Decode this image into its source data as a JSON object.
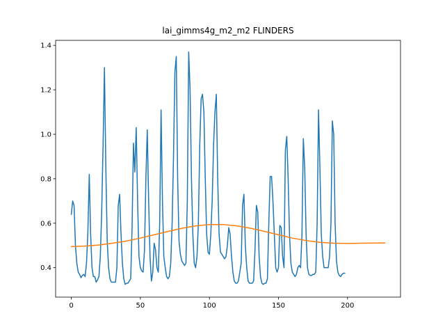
{
  "chart_data": {
    "type": "line",
    "title": "lai_gimms4g_m2_m2 FLINDERS",
    "xlabel": "",
    "ylabel": "",
    "xlim": [
      -11.35,
      238.35
    ],
    "ylim": [
      0.2675,
      1.4225
    ],
    "x_ticks": [
      0,
      50,
      100,
      150,
      200
    ],
    "y_ticks": [
      0.4,
      0.6,
      0.8,
      1.0,
      1.2,
      1.4
    ],
    "y_tick_labels": [
      "0.4",
      "0.6",
      "0.8",
      "1.0",
      "1.2",
      "1.4"
    ],
    "grid": false,
    "legend": "none",
    "series": [
      {
        "color": "#1f77b4",
        "points": [
          [
            0,
            0.64
          ],
          [
            1,
            0.7
          ],
          [
            2,
            0.68
          ],
          [
            3,
            0.5
          ],
          [
            4,
            0.42
          ],
          [
            5,
            0.38
          ],
          [
            6,
            0.37
          ],
          [
            7,
            0.355
          ],
          [
            8,
            0.365
          ],
          [
            9,
            0.37
          ],
          [
            10,
            0.36
          ],
          [
            11,
            0.42
          ],
          [
            12,
            0.56
          ],
          [
            13,
            0.82
          ],
          [
            14,
            0.55
          ],
          [
            15,
            0.4
          ],
          [
            16,
            0.36
          ],
          [
            17,
            0.36
          ],
          [
            18,
            0.335
          ],
          [
            19,
            0.345
          ],
          [
            20,
            0.36
          ],
          [
            21,
            0.45
          ],
          [
            22,
            0.65
          ],
          [
            23,
            0.95
          ],
          [
            24,
            1.3
          ],
          [
            25,
            0.85
          ],
          [
            26,
            0.52
          ],
          [
            27,
            0.4
          ],
          [
            28,
            0.35
          ],
          [
            29,
            0.335
          ],
          [
            30,
            0.335
          ],
          [
            31,
            0.335
          ],
          [
            32,
            0.335
          ],
          [
            33,
            0.4
          ],
          [
            34,
            0.68
          ],
          [
            35,
            0.73
          ],
          [
            36,
            0.55
          ],
          [
            37,
            0.42
          ],
          [
            38,
            0.35
          ],
          [
            39,
            0.325
          ],
          [
            40,
            0.33
          ],
          [
            41,
            0.33
          ],
          [
            42,
            0.34
          ],
          [
            43,
            0.35
          ],
          [
            44,
            0.58
          ],
          [
            45,
            0.96
          ],
          [
            46,
            0.83
          ],
          [
            47,
            1.03
          ],
          [
            48,
            0.7
          ],
          [
            49,
            0.45
          ],
          [
            50,
            0.4
          ],
          [
            51,
            0.385
          ],
          [
            52,
            0.38
          ],
          [
            53,
            0.48
          ],
          [
            54,
            0.8
          ],
          [
            55,
            1.02
          ],
          [
            56,
            0.7
          ],
          [
            57,
            0.45
          ],
          [
            58,
            0.34
          ],
          [
            59,
            0.38
          ],
          [
            60,
            0.51
          ],
          [
            61,
            0.48
          ],
          [
            62,
            0.4
          ],
          [
            63,
            0.38
          ],
          [
            64,
            0.6
          ],
          [
            65,
            1.11
          ],
          [
            66,
            0.7
          ],
          [
            67,
            0.45
          ],
          [
            68,
            0.4
          ],
          [
            69,
            0.36
          ],
          [
            70,
            0.35
          ],
          [
            71,
            0.36
          ],
          [
            72,
            0.42
          ],
          [
            73,
            0.6
          ],
          [
            74,
            0.9
          ],
          [
            75,
            1.28
          ],
          [
            76,
            1.35
          ],
          [
            77,
            0.8
          ],
          [
            78,
            0.52
          ],
          [
            79,
            0.46
          ],
          [
            80,
            0.43
          ],
          [
            81,
            0.42
          ],
          [
            82,
            0.41
          ],
          [
            83,
            0.42
          ],
          [
            84,
            0.7
          ],
          [
            85,
            1.37
          ],
          [
            86,
            1.2
          ],
          [
            87,
            0.8
          ],
          [
            88,
            0.55
          ],
          [
            89,
            0.42
          ],
          [
            90,
            0.4
          ],
          [
            91,
            0.45
          ],
          [
            92,
            0.6
          ],
          [
            93,
            0.95
          ],
          [
            94,
            1.16
          ],
          [
            95,
            1.18
          ],
          [
            96,
            1.1
          ],
          [
            97,
            0.8
          ],
          [
            98,
            0.55
          ],
          [
            99,
            0.47
          ],
          [
            100,
            0.46
          ],
          [
            101,
            0.55
          ],
          [
            102,
            0.7
          ],
          [
            103,
            0.95
          ],
          [
            104,
            1.1
          ],
          [
            105,
            1.18
          ],
          [
            106,
            0.8
          ],
          [
            107,
            0.55
          ],
          [
            108,
            0.47
          ],
          [
            109,
            0.46
          ],
          [
            110,
            0.45
          ],
          [
            111,
            0.44
          ],
          [
            112,
            0.45
          ],
          [
            113,
            0.5
          ],
          [
            114,
            0.58
          ],
          [
            115,
            0.55
          ],
          [
            116,
            0.45
          ],
          [
            117,
            0.38
          ],
          [
            118,
            0.34
          ],
          [
            119,
            0.33
          ],
          [
            120,
            0.33
          ],
          [
            121,
            0.34
          ],
          [
            122,
            0.38
          ],
          [
            123,
            0.42
          ],
          [
            124,
            0.68
          ],
          [
            125,
            0.73
          ],
          [
            126,
            0.5
          ],
          [
            127,
            0.4
          ],
          [
            128,
            0.34
          ],
          [
            129,
            0.33
          ],
          [
            130,
            0.33
          ],
          [
            131,
            0.33
          ],
          [
            132,
            0.34
          ],
          [
            133,
            0.48
          ],
          [
            134,
            0.68
          ],
          [
            135,
            0.65
          ],
          [
            136,
            0.45
          ],
          [
            137,
            0.36
          ],
          [
            138,
            0.33
          ],
          [
            139,
            0.325
          ],
          [
            140,
            0.33
          ],
          [
            141,
            0.33
          ],
          [
            142,
            0.35
          ],
          [
            143,
            0.6
          ],
          [
            144,
            0.81
          ],
          [
            145,
            0.81
          ],
          [
            146,
            0.7
          ],
          [
            147,
            0.55
          ],
          [
            148,
            0.4
          ],
          [
            149,
            0.38
          ],
          [
            150,
            0.4
          ],
          [
            151,
            0.59
          ],
          [
            152,
            0.58
          ],
          [
            153,
            0.45
          ],
          [
            154,
            0.4
          ],
          [
            155,
            0.93
          ],
          [
            156,
            0.99
          ],
          [
            157,
            0.8
          ],
          [
            158,
            0.55
          ],
          [
            159,
            0.42
          ],
          [
            160,
            0.38
          ],
          [
            161,
            0.37
          ],
          [
            162,
            0.36
          ],
          [
            163,
            0.37
          ],
          [
            164,
            0.4
          ],
          [
            165,
            0.41
          ],
          [
            166,
            0.4
          ],
          [
            167,
            0.55
          ],
          [
            168,
            0.98
          ],
          [
            169,
            0.85
          ],
          [
            170,
            0.55
          ],
          [
            171,
            0.4
          ],
          [
            172,
            0.37
          ],
          [
            173,
            0.365
          ],
          [
            174,
            0.365
          ],
          [
            175,
            0.37
          ],
          [
            176,
            0.37
          ],
          [
            177,
            0.38
          ],
          [
            178,
            0.6
          ],
          [
            179,
            1.11
          ],
          [
            180,
            0.85
          ],
          [
            181,
            0.55
          ],
          [
            182,
            0.45
          ],
          [
            183,
            0.4
          ],
          [
            184,
            0.4
          ],
          [
            185,
            0.4
          ],
          [
            186,
            0.4
          ],
          [
            187,
            0.45
          ],
          [
            188,
            0.6
          ],
          [
            189,
            1.06
          ],
          [
            190,
            1.0
          ],
          [
            191,
            0.6
          ],
          [
            192,
            0.43
          ],
          [
            193,
            0.38
          ],
          [
            194,
            0.365
          ],
          [
            195,
            0.36
          ],
          [
            196,
            0.37
          ],
          [
            197,
            0.375
          ],
          [
            198,
            0.375
          ]
        ]
      },
      {
        "color": "#ff7f0e",
        "points": [
          [
            0,
            0.495
          ],
          [
            10,
            0.497
          ],
          [
            20,
            0.502
          ],
          [
            30,
            0.51
          ],
          [
            40,
            0.52
          ],
          [
            50,
            0.533
          ],
          [
            60,
            0.548
          ],
          [
            70,
            0.563
          ],
          [
            80,
            0.577
          ],
          [
            90,
            0.588
          ],
          [
            100,
            0.594
          ],
          [
            110,
            0.594
          ],
          [
            120,
            0.588
          ],
          [
            130,
            0.577
          ],
          [
            140,
            0.563
          ],
          [
            150,
            0.548
          ],
          [
            160,
            0.533
          ],
          [
            170,
            0.522
          ],
          [
            180,
            0.514
          ],
          [
            190,
            0.51
          ],
          [
            200,
            0.509
          ],
          [
            210,
            0.51
          ],
          [
            220,
            0.511
          ],
          [
            227,
            0.511
          ]
        ]
      }
    ]
  }
}
